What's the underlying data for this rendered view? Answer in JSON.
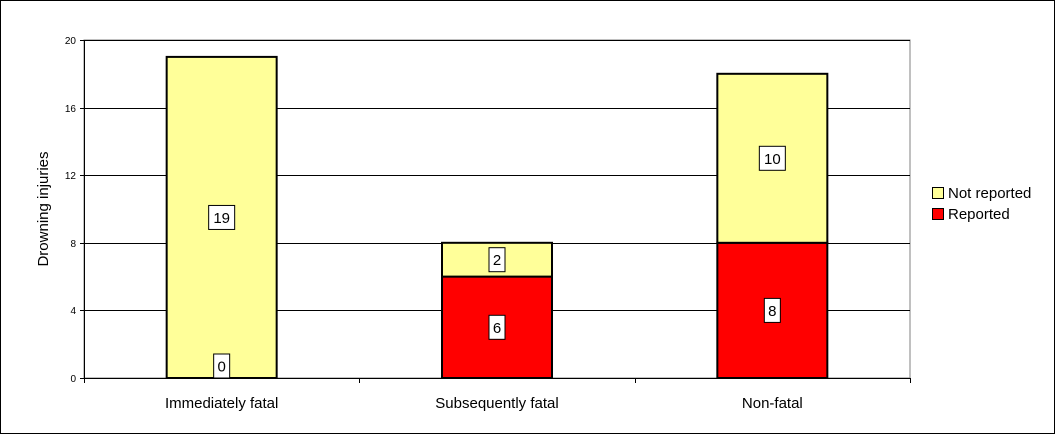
{
  "chart_data": {
    "type": "bar",
    "stacked": true,
    "categories": [
      "Immediately fatal",
      "Subsequently fatal",
      "Non-fatal"
    ],
    "series": [
      {
        "name": "Reported",
        "values": [
          0,
          6,
          8
        ],
        "color": "#ff0000"
      },
      {
        "name": "Not reported",
        "values": [
          19,
          2,
          10
        ],
        "color": "#ffff99"
      }
    ],
    "ylabel": "Drowning injuries",
    "xlabel": "",
    "ylim": [
      0,
      20
    ],
    "yticks": [
      0,
      4,
      8,
      12,
      16,
      20
    ],
    "ytick_labels": [
      "0",
      "4",
      "8",
      "12",
      "16",
      "20"
    ],
    "grid": true,
    "legend": "right",
    "legend_entries": [
      "Not reported",
      "Reported"
    ],
    "plot_background": "#ffffff",
    "gridline_color": "#000000"
  }
}
